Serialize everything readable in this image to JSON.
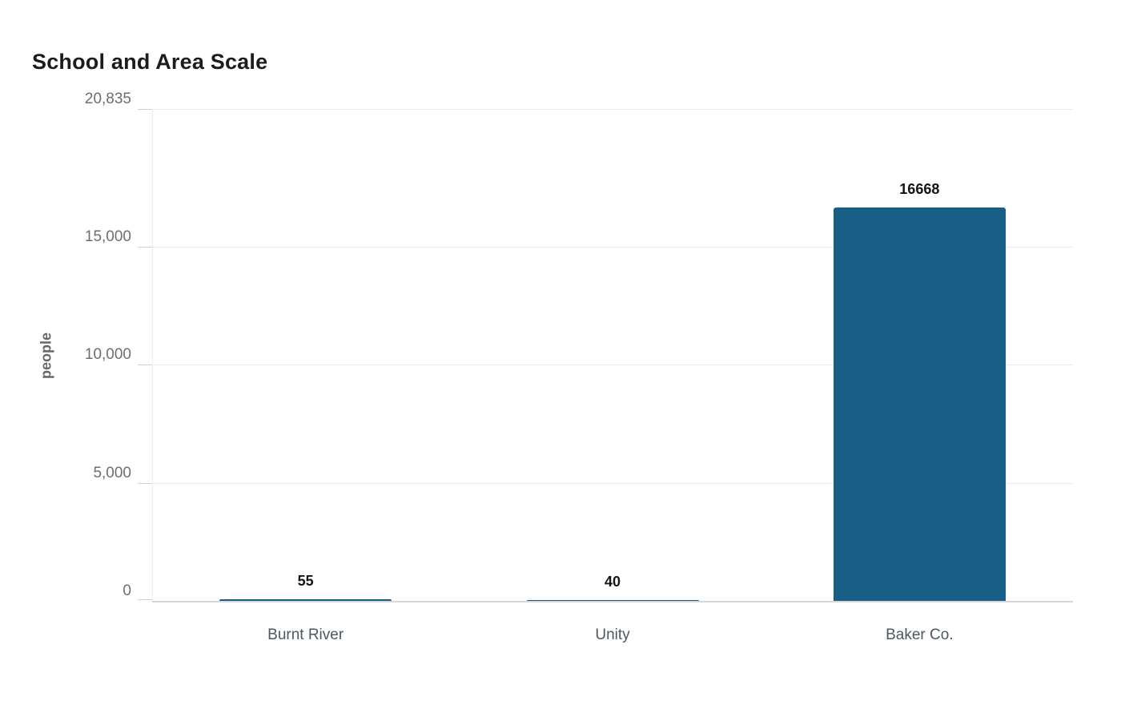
{
  "title": "School and Area Scale",
  "chart_data": {
    "type": "bar",
    "title": "School and Area Scale",
    "categories": [
      "Burnt River",
      "Unity",
      "Baker Co."
    ],
    "values": [
      55,
      40,
      16668
    ],
    "value_labels": [
      "55",
      "40",
      "16668"
    ],
    "xlabel": "",
    "ylabel": "people",
    "ylim": [
      0,
      20835
    ],
    "yticks": [
      {
        "value": 0,
        "label": "0"
      },
      {
        "value": 5000,
        "label": "5,000"
      },
      {
        "value": 10000,
        "label": "10,000"
      },
      {
        "value": 15000,
        "label": "15,000"
      },
      {
        "value": 20835,
        "label": "20,835"
      }
    ],
    "grid": true,
    "legend_position": "none",
    "bar_color": "#175f87",
    "background_color": "#ffffff"
  }
}
